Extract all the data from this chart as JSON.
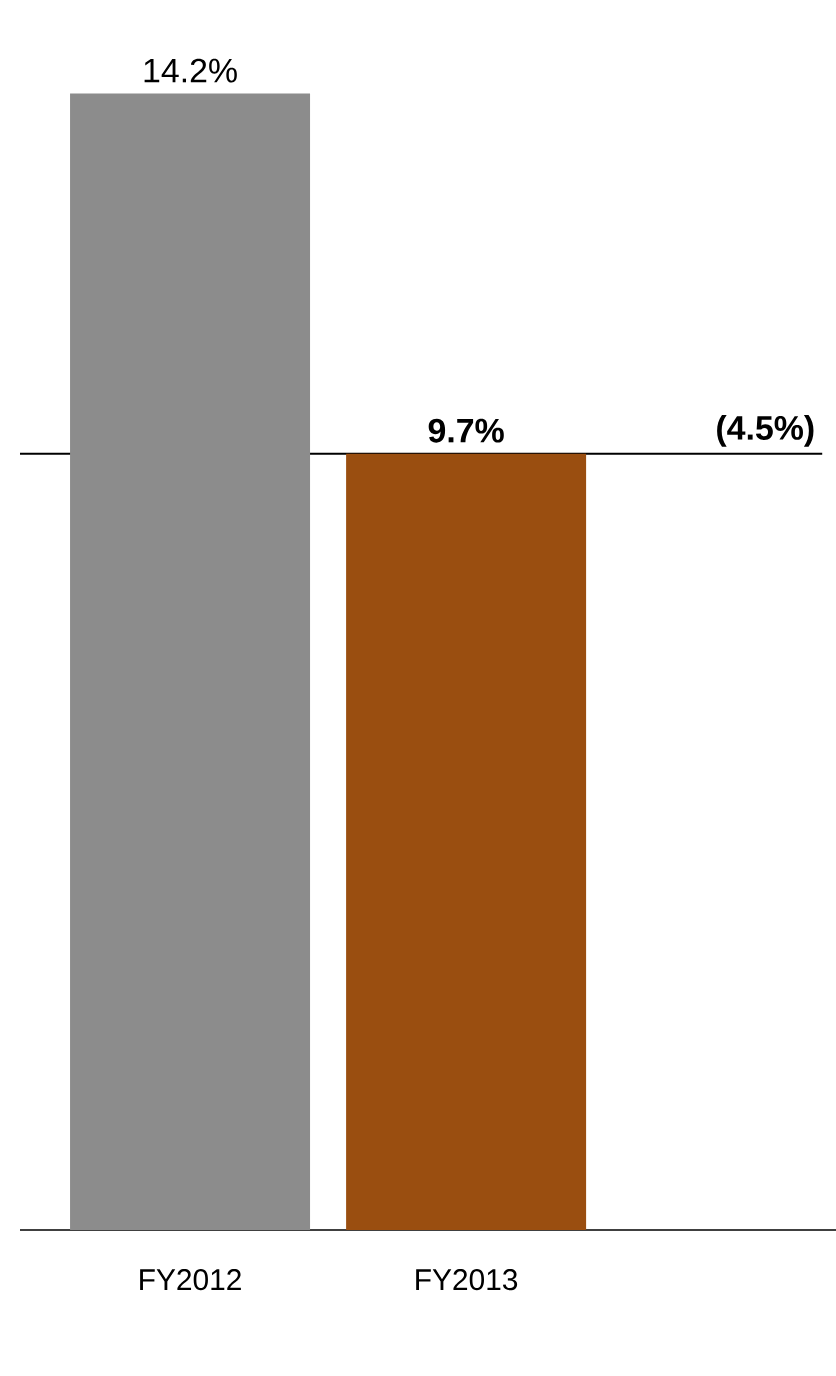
{
  "chart_data": {
    "type": "bar",
    "categories": [
      "FY2012",
      "FY2013"
    ],
    "values": [
      14.2,
      9.7
    ],
    "colors": [
      "#8c8c8c",
      "#9a4e10"
    ],
    "value_labels": [
      "14.2%",
      "9.7%"
    ],
    "ref_lines": [
      {
        "axis": "y",
        "value": 9.7,
        "color": "#000000"
      }
    ],
    "annotations": [
      {
        "text": "(4.5%)",
        "y": 9.7
      }
    ]
  }
}
